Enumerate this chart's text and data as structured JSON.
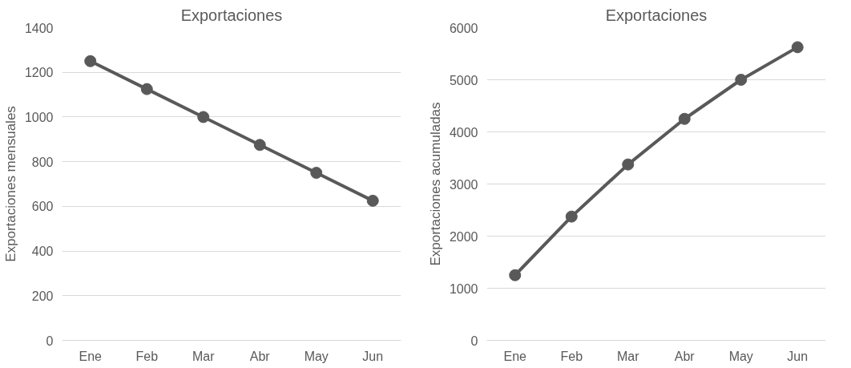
{
  "chart_data": [
    {
      "type": "line",
      "title": "Exportaciones",
      "ylabel": "Exportaciones mensuales",
      "categories": [
        "Ene",
        "Feb",
        "Mar",
        "Abr",
        "May",
        "Jun"
      ],
      "series": [
        {
          "color": "#595959",
          "values": [
            1250,
            1125,
            1000,
            875,
            750,
            625
          ]
        }
      ],
      "ylim": [
        0,
        1400
      ],
      "yticks": [
        0,
        200,
        400,
        600,
        800,
        1000,
        1200,
        1400
      ],
      "grid": "y",
      "marker": "circle",
      "line_style": "solid"
    },
    {
      "type": "line",
      "title": "Exportaciones",
      "ylabel": "Exportaciones acumuladas",
      "categories": [
        "Ene",
        "Feb",
        "Mar",
        "Abr",
        "May",
        "Jun"
      ],
      "series": [
        {
          "color": "#595959",
          "values": [
            1250,
            2375,
            3375,
            4250,
            5000,
            5625
          ]
        }
      ],
      "ylim": [
        0,
        6000
      ],
      "yticks": [
        0,
        1000,
        2000,
        3000,
        4000,
        5000,
        6000
      ],
      "grid": "y",
      "marker": "circle",
      "line_style": "solid"
    }
  ]
}
